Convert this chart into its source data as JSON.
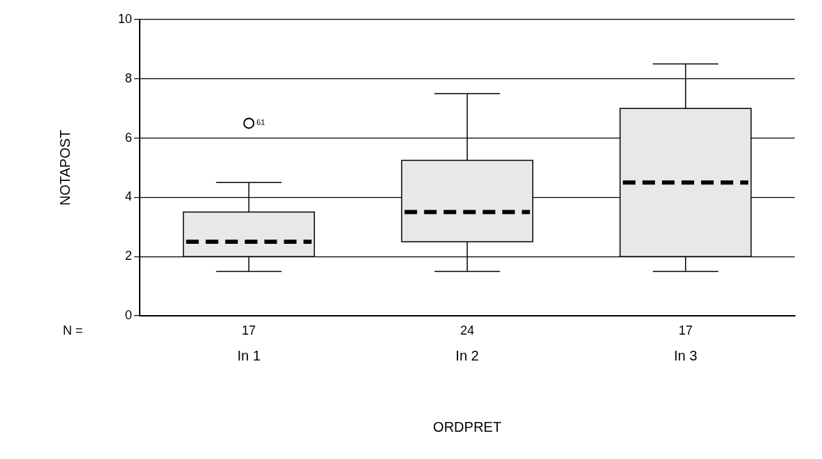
{
  "chart_data": {
    "type": "box",
    "xlabel": "ORDPRET",
    "ylabel": "NOTAPOST",
    "categories": [
      "In 1",
      "In 2",
      "In 3"
    ],
    "boxes": [
      {
        "low": 1.5,
        "q1": 2,
        "median": 2.5,
        "q3": 3.5,
        "high": 4.5,
        "outliers": [
          6.5
        ]
      },
      {
        "low": 1.5,
        "q1": 2.5,
        "median": 3.5,
        "q3": 5.25,
        "high": 7.5
      },
      {
        "low": 1.5,
        "q1": 2,
        "median": 4.5,
        "q3": 7,
        "high": 8.5
      }
    ],
    "color": "#e8e8e8",
    "ylim": [
      0,
      10
    ],
    "yticks": [
      0,
      2,
      4,
      6,
      8,
      10
    ],
    "grid": "y",
    "line_style": "dashed",
    "marker": "circle",
    "annotations": [
      "N =",
      "17",
      "24",
      "17",
      "61"
    ]
  }
}
